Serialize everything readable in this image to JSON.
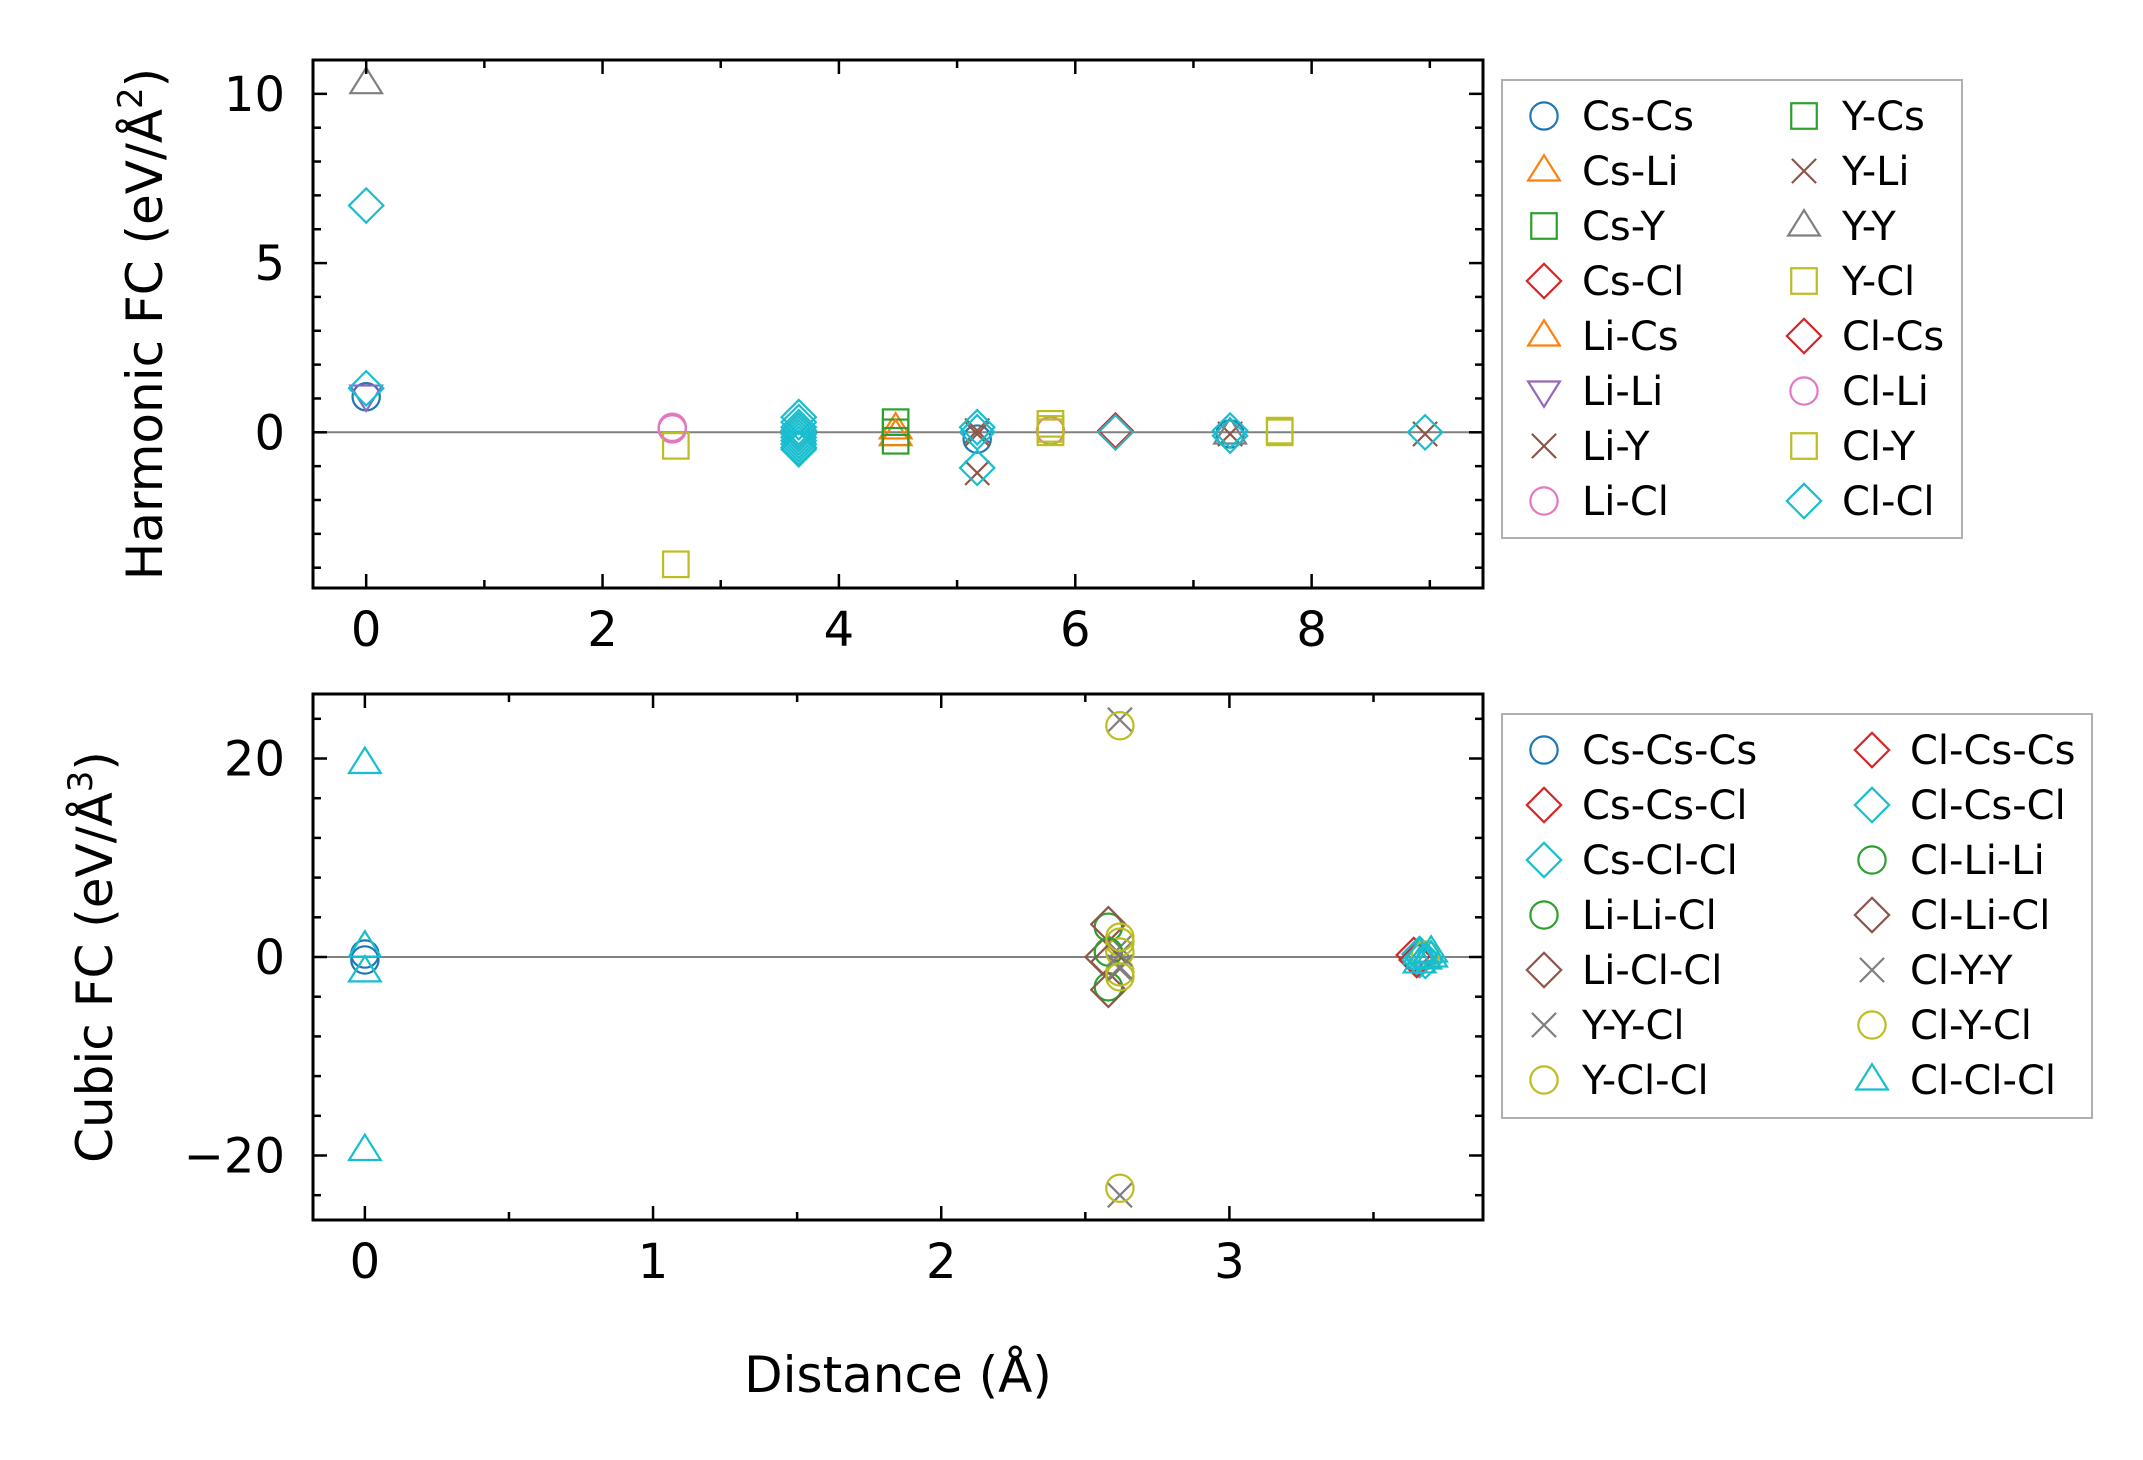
{
  "chart_data": [
    {
      "type": "scatter",
      "id": "harmonic",
      "xlabel": "",
      "ylabel_main": "Harmonic FC (eV/Å",
      "ylabel_sup": "2",
      "ylabel_close": ")",
      "xlim": [
        -0.45,
        9.45
      ],
      "ylim": [
        -4.6,
        11.0
      ],
      "xticks": [
        0,
        2,
        4,
        6,
        8
      ],
      "xtick_labels": [
        "0",
        "2",
        "4",
        "6",
        "8"
      ],
      "yticks": [
        0,
        5,
        10
      ],
      "ytick_labels": [
        "0",
        "5",
        "10"
      ],
      "zero_line": true,
      "legend_location": "outside-right",
      "series": [
        {
          "name": "Cs-Cs",
          "marker": "circle",
          "color": "#1f77b4",
          "x": [
            0.0,
            5.17,
            7.31
          ],
          "y": [
            1.05,
            -0.2,
            -0.05
          ]
        },
        {
          "name": "Cs-Li",
          "marker": "triangle-up",
          "color": "#ff7f0e",
          "x": [
            4.48
          ],
          "y": [
            0.1
          ]
        },
        {
          "name": "Cs-Y",
          "marker": "square",
          "color": "#2ca02c",
          "x": [
            4.48
          ],
          "y": [
            0.0
          ]
        },
        {
          "name": "Cs-Cl",
          "marker": "diamond",
          "color": "#d62728",
          "x": [
            3.66,
            6.34
          ],
          "y": [
            0.05,
            0.05
          ]
        },
        {
          "name": "Li-Cs",
          "marker": "triangle-up",
          "color": "#ff7f0e",
          "x": [
            4.48
          ],
          "y": [
            -0.1
          ]
        },
        {
          "name": "Li-Li",
          "marker": "triangle-down",
          "color": "#9467bd",
          "x": [
            0.0
          ],
          "y": [
            1.1
          ]
        },
        {
          "name": "Li-Y",
          "marker": "x",
          "color": "#8c564b",
          "x": [
            5.17,
            5.17,
            7.31
          ],
          "y": [
            0.05,
            -1.2,
            -0.05
          ]
        },
        {
          "name": "Li-Cl",
          "marker": "circle",
          "color": "#e377c2",
          "x": [
            2.59,
            5.79
          ],
          "y": [
            0.1,
            0.05
          ]
        },
        {
          "name": "Y-Cs",
          "marker": "square",
          "color": "#2ca02c",
          "x": [
            4.48,
            4.48
          ],
          "y": [
            0.3,
            -0.25
          ]
        },
        {
          "name": "Y-Li",
          "marker": "x",
          "color": "#8c564b",
          "x": [
            5.17,
            8.96
          ],
          "y": [
            -0.05,
            -0.05
          ]
        },
        {
          "name": "Y-Y",
          "marker": "triangle-up",
          "color": "#7f7f7f",
          "x": [
            0.0,
            7.31
          ],
          "y": [
            10.3,
            -0.05
          ]
        },
        {
          "name": "Y-Cl",
          "marker": "square",
          "color": "#bcbd22",
          "x": [
            2.62,
            2.62,
            5.79,
            5.79,
            7.73
          ],
          "y": [
            -3.9,
            -0.4,
            0.25,
            0.0,
            0.05
          ]
        },
        {
          "name": "Cl-Cs",
          "marker": "diamond",
          "color": "#d62728",
          "x": [
            6.34
          ],
          "y": [
            0.0
          ]
        },
        {
          "name": "Cl-Li",
          "marker": "circle",
          "color": "#e377c2",
          "x": [
            2.59
          ],
          "y": [
            0.15
          ]
        },
        {
          "name": "Cl-Y",
          "marker": "square",
          "color": "#bcbd22",
          "x": [
            5.79,
            7.73
          ],
          "y": [
            0.1,
            0.0
          ]
        },
        {
          "name": "Cl-Cl",
          "marker": "diamond",
          "color": "#17becf",
          "x": [
            0.0,
            0.0,
            3.66,
            3.66,
            3.66,
            3.66,
            3.66,
            3.66,
            3.66,
            3.66,
            3.66,
            3.66,
            5.17,
            5.17,
            5.17,
            6.34,
            7.31,
            7.31,
            8.96
          ],
          "y": [
            6.7,
            1.3,
            0.45,
            0.3,
            0.15,
            0.05,
            -0.05,
            -0.15,
            -0.25,
            -0.35,
            -0.45,
            -0.5,
            0.15,
            0.0,
            -1.05,
            0.0,
            0.05,
            -0.1,
            0.0
          ]
        }
      ]
    },
    {
      "type": "scatter",
      "id": "cubic",
      "xlabel": "Distance (Å)",
      "ylabel_main": "Cubic FC (eV/Å",
      "ylabel_sup": "3",
      "ylabel_close": ")",
      "xlim": [
        -0.18,
        3.88
      ],
      "ylim": [
        -26.5,
        26.5
      ],
      "xticks": [
        0,
        1,
        2,
        3
      ],
      "xtick_labels": [
        "0",
        "1",
        "2",
        "3"
      ],
      "yticks": [
        -20,
        0,
        20
      ],
      "ytick_labels": [
        "−20",
        "0",
        "20"
      ],
      "zero_line": true,
      "legend_location": "outside-right",
      "series": [
        {
          "name": "Cs-Cs-Cs",
          "marker": "circle",
          "color": "#1f77b4",
          "x": [
            0.0,
            0.0
          ],
          "y": [
            0.3,
            -0.3
          ]
        },
        {
          "name": "Cs-Cs-Cl",
          "marker": "diamond",
          "color": "#d62728",
          "x": [
            3.64
          ],
          "y": [
            0.2
          ]
        },
        {
          "name": "Cs-Cl-Cl",
          "marker": "diamond",
          "color": "#17becf",
          "x": [
            3.66,
            3.66
          ],
          "y": [
            0.3,
            -0.3
          ]
        },
        {
          "name": "Li-Li-Cl",
          "marker": "circle",
          "color": "#2ca02c",
          "x": [
            2.58,
            2.58
          ],
          "y": [
            3.0,
            -3.0
          ]
        },
        {
          "name": "Li-Cl-Cl",
          "marker": "diamond",
          "color": "#8c564b",
          "x": [
            2.58,
            2.58,
            2.56
          ],
          "y": [
            3.3,
            -3.3,
            0.0
          ]
        },
        {
          "name": "Y-Y-Cl",
          "marker": "x",
          "color": "#7f7f7f",
          "x": [
            2.62,
            2.62,
            2.62,
            2.62
          ],
          "y": [
            23.9,
            -24.0,
            1.0,
            -1.2
          ]
        },
        {
          "name": "Y-Cl-Cl",
          "marker": "circle",
          "color": "#bcbd22",
          "x": [
            2.62,
            2.62,
            2.62,
            2.62,
            2.62
          ],
          "y": [
            23.3,
            -23.3,
            1.5,
            -1.5,
            0.5
          ]
        },
        {
          "name": "Cl-Cs-Cs",
          "marker": "diamond",
          "color": "#d62728",
          "x": [
            3.65
          ],
          "y": [
            -0.3
          ]
        },
        {
          "name": "Cl-Cs-Cl",
          "marker": "diamond",
          "color": "#17becf",
          "x": [
            3.67,
            3.68
          ],
          "y": [
            0.0,
            -0.4
          ]
        },
        {
          "name": "Cl-Li-Li",
          "marker": "circle",
          "color": "#2ca02c",
          "x": [
            2.58
          ],
          "y": [
            0.5
          ]
        },
        {
          "name": "Cl-Li-Cl",
          "marker": "diamond",
          "color": "#8c564b",
          "x": [
            2.58
          ],
          "y": [
            -0.5
          ]
        },
        {
          "name": "Cl-Y-Y",
          "marker": "x",
          "color": "#7f7f7f",
          "x": [
            2.62,
            2.62
          ],
          "y": [
            -1.0,
            0.3
          ]
        },
        {
          "name": "Cl-Y-Cl",
          "marker": "circle",
          "color": "#bcbd22",
          "x": [
            2.62,
            2.62,
            3.68
          ],
          "y": [
            -2.0,
            2.0,
            0.2
          ]
        },
        {
          "name": "Cl-Cl-Cl",
          "marker": "triangle-up",
          "color": "#17becf",
          "x": [
            0.0,
            0.0,
            0.0,
            0.0,
            3.66,
            3.68,
            3.7,
            3.66,
            3.7
          ],
          "y": [
            19.5,
            -19.5,
            1.0,
            -1.5,
            0.3,
            -0.2,
            0.5,
            -0.6,
            0.0
          ]
        }
      ]
    }
  ]
}
